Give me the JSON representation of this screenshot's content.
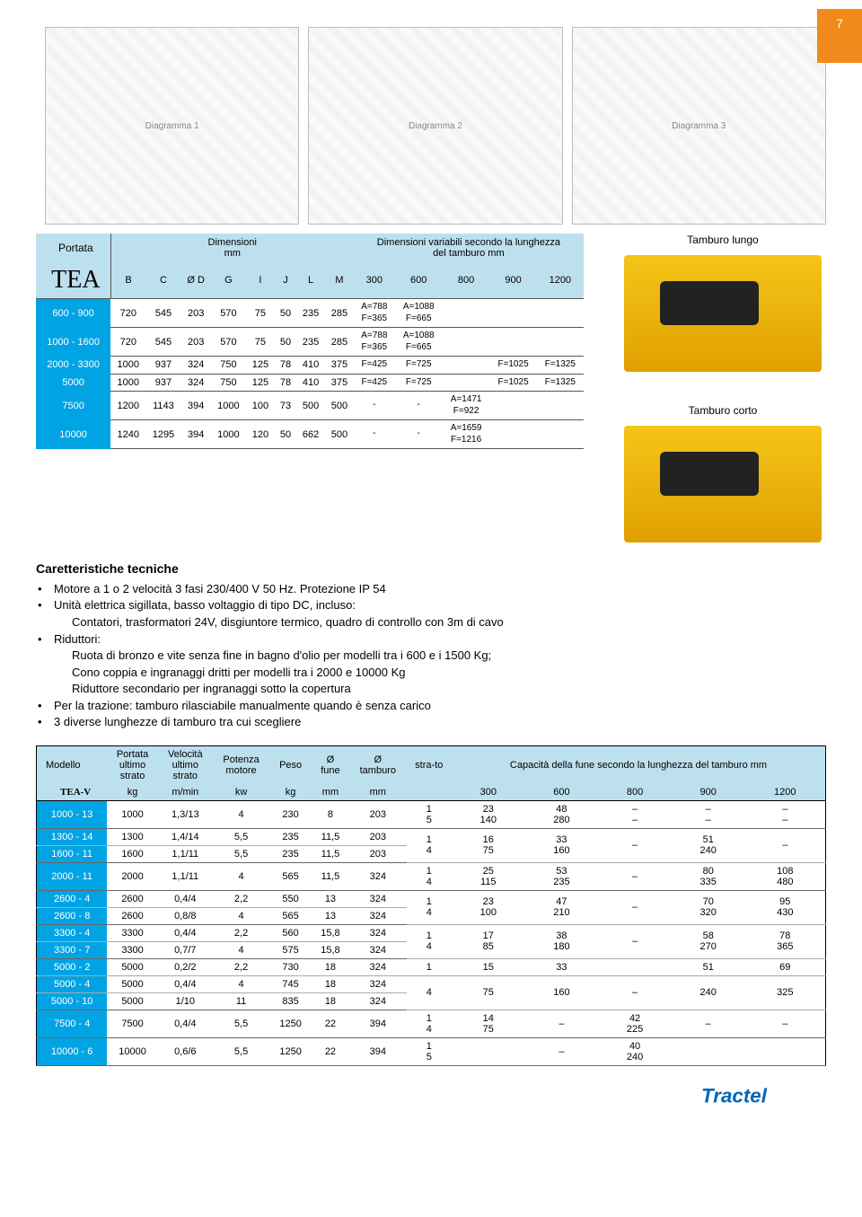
{
  "page_number": "7",
  "diagram_placeholders": [
    "Diagramma 1",
    "Diagramma 2",
    "Diagramma 3"
  ],
  "images": {
    "right1_label": "Tamburo lungo",
    "right2_label": "Tamburo corto"
  },
  "footer": {
    "brand": "Tractel"
  },
  "tea": {
    "brand": "TEA",
    "hdr_portata": "Portata",
    "hdr_dim": "Dimensioni",
    "hdr_dim_unit": "mm",
    "hdr_var": "Dimensioni variabili secondo la lunghezza",
    "hdr_var2": "del tamburo  mm",
    "cols_fixed": [
      "B",
      "C",
      "Ø D",
      "G",
      "I",
      "J",
      "L",
      "M"
    ],
    "cols_var": [
      "300",
      "600",
      "800",
      "900",
      "1200"
    ],
    "rows": [
      {
        "p": "600 - 900",
        "f": [
          "720",
          "545",
          "203",
          "570",
          "75",
          "50",
          "235",
          "285"
        ],
        "v": [
          "A=788\nF=365",
          "A=1088\nF=665",
          "",
          "",
          ""
        ]
      },
      {
        "p": "1000 - 1600",
        "f": [
          "720",
          "545",
          "203",
          "570",
          "75",
          "50",
          "235",
          "285"
        ],
        "v": [
          "A=788\nF=365",
          "A=1088\nF=665",
          "",
          "",
          ""
        ]
      },
      {
        "p": "2000 - 3300",
        "f": [
          "1000",
          "937",
          "324",
          "750",
          "125",
          "78",
          "410",
          "375"
        ],
        "v": [
          "F=425",
          "F=725",
          "",
          "F=1025",
          "F=1325"
        ]
      },
      {
        "p": "5000",
        "f": [
          "1000",
          "937",
          "324",
          "750",
          "125",
          "78",
          "410",
          "375"
        ],
        "v": [
          "F=425",
          "F=725",
          "",
          "F=1025",
          "F=1325"
        ]
      },
      {
        "p": "7500",
        "f": [
          "1200",
          "1143",
          "394",
          "1000",
          "100",
          "73",
          "500",
          "500"
        ],
        "v": [
          "-",
          "-",
          "A=1471\nF=922",
          "",
          ""
        ]
      },
      {
        "p": "10000",
        "f": [
          "1240",
          "1295",
          "394",
          "1000",
          "120",
          "50",
          "662",
          "500"
        ],
        "v": [
          "-",
          "-",
          "A=1659\nF=1216",
          "",
          ""
        ]
      }
    ]
  },
  "specs": {
    "title": "Caretteristiche tecniche",
    "items": [
      {
        "b": true,
        "t": "Motore a 1 o 2 velocità 3 fasi 230/400 V 50 Hz. Protezione IP 54"
      },
      {
        "b": true,
        "t": "Unità elettrica sigillata, basso voltaggio di tipo DC, incluso:"
      },
      {
        "b": false,
        "t": "Contatori, trasformatori 24V, disgiuntore termico, quadro di controllo con 3m di cavo"
      },
      {
        "b": true,
        "t": "Riduttori:"
      },
      {
        "b": false,
        "t": "Ruota di bronzo e vite senza fine in bagno d'olio per modelli tra i 600 e i 1500 Kg;"
      },
      {
        "b": false,
        "t": "Cono coppia e ingranaggi dritti per modelli tra i 2000 e 10000 Kg"
      },
      {
        "b": false,
        "t": "Riduttore secondario per ingranaggi sotto la copertura"
      },
      {
        "b": true,
        "t": "Per la trazione: tamburo rilasciabile manualmente quando è senza carico"
      },
      {
        "b": true,
        "t": "3 diverse lunghezze di tamburo tra cui scegliere"
      }
    ]
  },
  "teav": {
    "brand": "TEA-V",
    "hdr_model": "Modello",
    "cols": [
      {
        "t": "Portata ultimo strato",
        "u": "kg"
      },
      {
        "t": "Velocità ultimo strato",
        "u": "m/min"
      },
      {
        "t": "Potenza motore",
        "u": "kw"
      },
      {
        "t": "Peso",
        "u": "kg"
      },
      {
        "t": "Ø fune",
        "u": "mm"
      },
      {
        "t": "Ø tamburo",
        "u": "mm"
      },
      {
        "t": "stra-to",
        "u": ""
      }
    ],
    "cap_hdr": "Capacità della fune secondo la lunghezza del tamburo mm",
    "cap_cols": [
      "300",
      "600",
      "800",
      "900",
      "1200"
    ],
    "groups": [
      {
        "rows": [
          {
            "m": "1000 - 13",
            "c": [
              "1000",
              "1,3/13",
              "4",
              "230",
              "8",
              "203"
            ]
          }
        ],
        "strato": [
          "1",
          "5"
        ],
        "cap": [
          [
            "23",
            "140"
          ],
          [
            "48",
            "280"
          ],
          [
            "–",
            "–"
          ],
          [
            "–",
            "–"
          ],
          [
            "–",
            "–"
          ]
        ]
      },
      {
        "rows": [
          {
            "m": "1300 - 14",
            "c": [
              "1300",
              "1,4/14",
              "5,5",
              "235",
              "11,5",
              "203"
            ]
          },
          {
            "m": "1600 - 11",
            "c": [
              "1600",
              "1,1/11",
              "5,5",
              "235",
              "11,5",
              "203"
            ]
          }
        ],
        "strato": [
          "1",
          "4"
        ],
        "cap": [
          [
            "16",
            "75"
          ],
          [
            "33",
            "160"
          ],
          [
            "–",
            ""
          ],
          [
            "51",
            "240"
          ],
          [
            "–",
            ""
          ]
        ]
      },
      {
        "rows": [
          {
            "m": "2000 - 11",
            "c": [
              "2000",
              "1,1/11",
              "4",
              "565",
              "11,5",
              "324"
            ]
          }
        ],
        "strato": [
          "1",
          "4"
        ],
        "cap": [
          [
            "25",
            "115"
          ],
          [
            "53",
            "235"
          ],
          [
            "–",
            ""
          ],
          [
            "80",
            "335"
          ],
          [
            "108",
            "480"
          ]
        ]
      },
      {
        "rows": [
          {
            "m": "2600 - 4",
            "c": [
              "2600",
              "0,4/4",
              "2,2",
              "550",
              "13",
              "324"
            ]
          },
          {
            "m": "2600 - 8",
            "c": [
              "2600",
              "0,8/8",
              "4",
              "565",
              "13",
              "324"
            ]
          }
        ],
        "strato": [
          "1",
          "4"
        ],
        "cap": [
          [
            "23",
            "100"
          ],
          [
            "47",
            "210"
          ],
          [
            "–",
            ""
          ],
          [
            "70",
            "320"
          ],
          [
            "95",
            "430"
          ]
        ]
      },
      {
        "rows": [
          {
            "m": "3300 - 4",
            "c": [
              "3300",
              "0,4/4",
              "2,2",
              "560",
              "15,8",
              "324"
            ]
          },
          {
            "m": "3300 - 7",
            "c": [
              "3300",
              "0,7/7",
              "4",
              "575",
              "15,8",
              "324"
            ]
          }
        ],
        "strato": [
          "1",
          "4"
        ],
        "cap": [
          [
            "17",
            "85"
          ],
          [
            "38",
            "180"
          ],
          [
            "–",
            ""
          ],
          [
            "58",
            "270"
          ],
          [
            "78",
            "365"
          ]
        ]
      },
      {
        "rows": [
          {
            "m": "5000 - 2",
            "c": [
              "5000",
              "0,2/2",
              "2,2",
              "730",
              "18",
              "324"
            ]
          }
        ],
        "strato": [
          "1"
        ],
        "cap": [
          [
            "15"
          ],
          [
            "33"
          ],
          [
            ""
          ],
          [
            "51"
          ],
          [
            "69"
          ]
        ],
        "sep": "thin"
      },
      {
        "rows": [
          {
            "m": "5000 - 4",
            "c": [
              "5000",
              "0,4/4",
              "4",
              "745",
              "18",
              "324"
            ]
          },
          {
            "m": "5000 - 10",
            "c": [
              "5000",
              "1/10",
              "11",
              "835",
              "18",
              "324"
            ]
          }
        ],
        "strato": [
          "4"
        ],
        "cap": [
          [
            "75"
          ],
          [
            "160"
          ],
          [
            "–"
          ],
          [
            "240"
          ],
          [
            "325"
          ]
        ]
      },
      {
        "rows": [
          {
            "m": "7500 - 4",
            "c": [
              "7500",
              "0,4/4",
              "5,5",
              "1250",
              "22",
              "394"
            ]
          }
        ],
        "strato": [
          "1",
          "4"
        ],
        "cap": [
          [
            "14",
            "75"
          ],
          [
            "–",
            ""
          ],
          [
            "42",
            "225"
          ],
          [
            "–",
            ""
          ],
          [
            "–",
            ""
          ]
        ]
      },
      {
        "rows": [
          {
            "m": "10000 - 6",
            "c": [
              "10000",
              "0,6/6",
              "5,5",
              "1250",
              "22",
              "394"
            ]
          }
        ],
        "strato": [
          "1",
          "5"
        ],
        "cap": [
          [
            ""
          ],
          [
            "–"
          ],
          [
            "40",
            "240"
          ],
          [
            ""
          ],
          [
            ""
          ]
        ]
      }
    ]
  },
  "colors": {
    "hdr_band": "#bde0ee",
    "row_label": "#00a4e4",
    "accent": "#f08a1a",
    "rule": "#555555"
  }
}
